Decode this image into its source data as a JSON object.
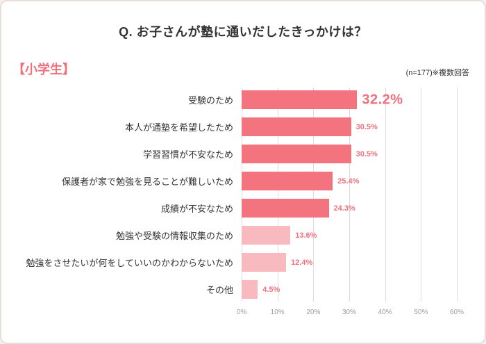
{
  "header": {
    "title": "Q. お子さんが塾に通いだしたきっかけは？"
  },
  "subheader": {
    "group_label": "【小学生】",
    "note": "(n=177)※複数回答"
  },
  "colors": {
    "accent": "#f1707d",
    "bar": "#f3747e",
    "bar_light": "#f9babf",
    "grid": "#dcdcdc",
    "tick_text": "#9b9b9b"
  },
  "chart_data": {
    "type": "bar",
    "orientation": "horizontal",
    "title": "Q. お子さんが塾に通いだしたきっかけは？",
    "subtitle": "【小学生】",
    "sample_note": "(n=177)※複数回答",
    "categories": [
      "受験のため",
      "本人が通塾を希望したため",
      "学習習慣が不安なため",
      "保護者が家で勉強を見ることが難しいため",
      "成績が不安なため",
      "勉強や受験の情報収集のため",
      "勉強をさせたいが何をしていいのかわからないため",
      "その他"
    ],
    "values": [
      32.2,
      30.5,
      30.5,
      25.4,
      24.3,
      13.6,
      12.4,
      4.5
    ],
    "labels": [
      "32.2%",
      "30.5%",
      "30.5%",
      "25.4%",
      "24.3%",
      "13.6%",
      "12.4%",
      "4.5%"
    ],
    "emphasis": [
      true,
      false,
      false,
      false,
      false,
      false,
      false,
      false
    ],
    "light": [
      false,
      false,
      false,
      false,
      false,
      true,
      true,
      true
    ],
    "xlim": [
      0,
      60
    ],
    "xticks": [
      "0%",
      "10%",
      "20%",
      "30%",
      "40%",
      "50%",
      "60%"
    ],
    "grid": true,
    "legend": "none"
  }
}
